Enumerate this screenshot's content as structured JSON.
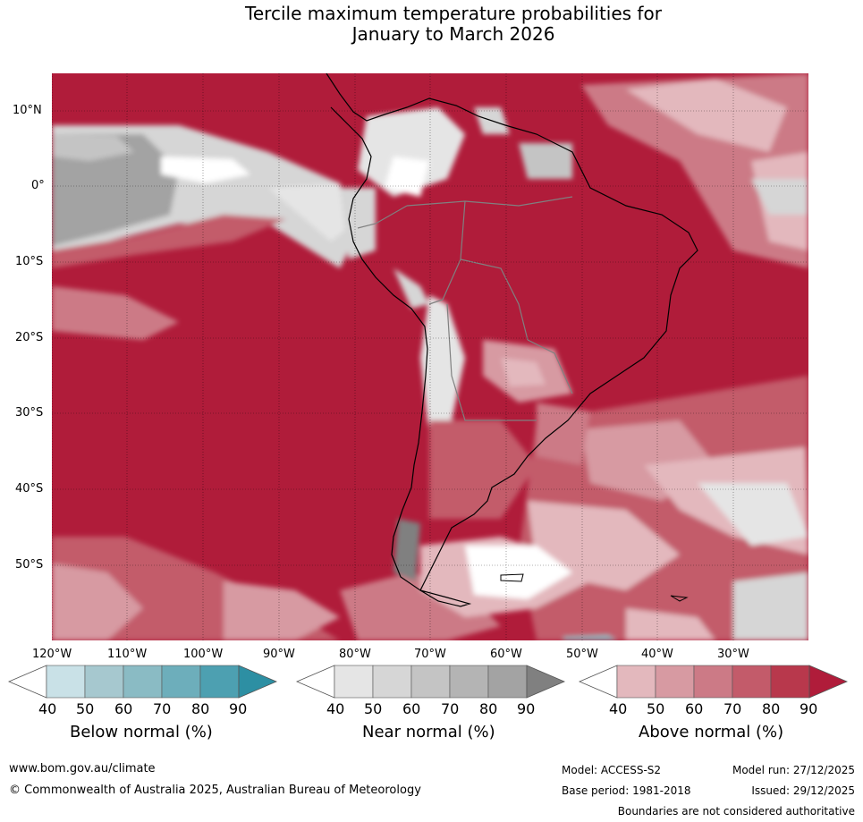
{
  "title": {
    "line1": "Tercile maximum temperature probabilities for",
    "line2": "January to March 2026"
  },
  "map": {
    "lat_labels": [
      "10°N",
      "0°",
      "10°S",
      "20°S",
      "30°S",
      "40°S",
      "50°S"
    ],
    "lon_labels": [
      "120°W",
      "110°W",
      "100°W",
      "90°W",
      "80°W",
      "70°W",
      "60°W",
      "50°W",
      "40°W",
      "30°W"
    ]
  },
  "colorbars": [
    {
      "title": "Below normal (%)",
      "ticks": [
        "40",
        "50",
        "60",
        "70",
        "80",
        "90"
      ],
      "colors": [
        "#ffffff",
        "#c9e1e7",
        "#a6c8cf",
        "#8abbc4",
        "#6daebb",
        "#4da0b1",
        "#2d8fa3"
      ]
    },
    {
      "title": "Near normal (%)",
      "ticks": [
        "40",
        "50",
        "60",
        "70",
        "80",
        "90"
      ],
      "colors": [
        "#ffffff",
        "#e5e5e5",
        "#d6d6d6",
        "#c4c4c4",
        "#b4b4b4",
        "#a3a3a3",
        "#808080"
      ]
    },
    {
      "title": "Above normal (%)",
      "ticks": [
        "40",
        "50",
        "60",
        "70",
        "80",
        "90"
      ],
      "colors": [
        "#ffffff",
        "#e3b8bd",
        "#d79aa2",
        "#cc7a86",
        "#c35b6a",
        "#b8384c",
        "#b01c3a"
      ]
    }
  ],
  "footer": {
    "website": "www.bom.gov.au/climate",
    "copyright": "© Commonwealth of Australia 2025, Australian Bureau of Meteorology",
    "model": "Model: ACCESS-S2",
    "base_period": "Base period: 1981-2018",
    "model_run": "Model run: 27/12/2025",
    "issued": "Issued: 29/12/2025",
    "disclaimer": "Boundaries are not considered authoritative"
  }
}
